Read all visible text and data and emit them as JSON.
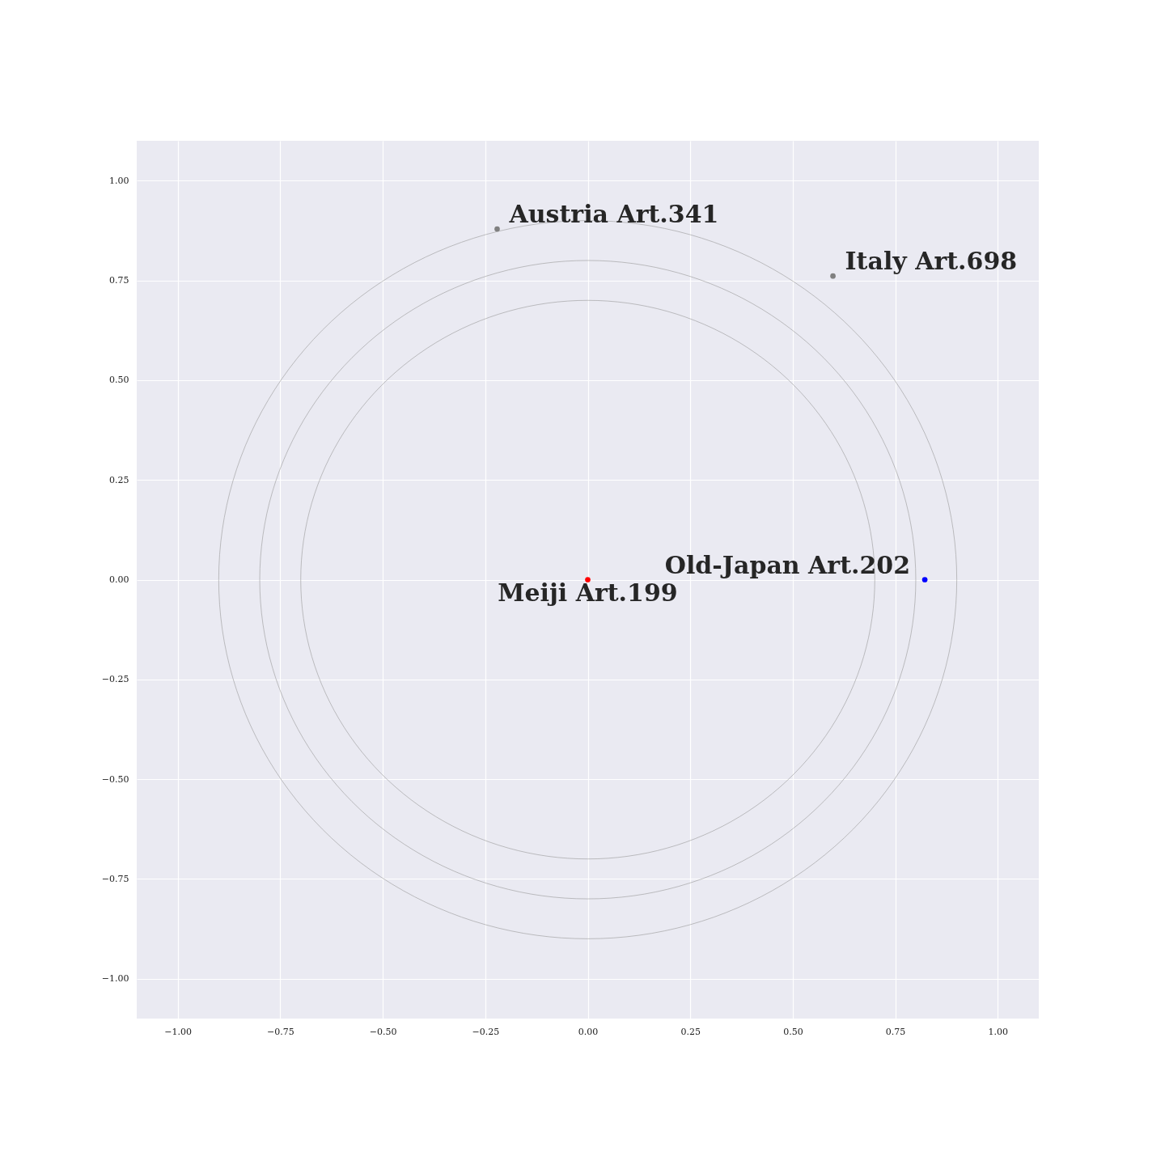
{
  "chart_data": {
    "type": "scatter",
    "series": [
      {
        "marker": "circle",
        "x": [
          0,
          0.822,
          -0.221,
          0.598
        ],
        "values": [
          0,
          0,
          0.879,
          0.761
        ],
        "colors": [
          "#ff0000",
          "#0000ff",
          "#808080",
          "#808080"
        ]
      }
    ],
    "annotations": [
      {
        "text": "Meiji Art.199",
        "x": 0,
        "y": 0
      },
      {
        "text": "Old-Japan Art.202",
        "x": 0.822,
        "y": 0
      },
      {
        "text": "Austria Art.341",
        "x": -0.221,
        "y": 0.879
      },
      {
        "text": "Italy Art.698",
        "x": 0.598,
        "y": 0.761
      }
    ],
    "xlim": [
      -1.1,
      1.1
    ],
    "ylim": [
      -1.1,
      1.1
    ],
    "xticks": [
      {
        "value": -1,
        "label": "−1.00"
      },
      {
        "value": -0.75,
        "label": "−0.75"
      },
      {
        "value": -0.5,
        "label": "−0.50"
      },
      {
        "value": -0.25,
        "label": "−0.25"
      },
      {
        "value": 0,
        "label": "0.00"
      },
      {
        "value": 0.25,
        "label": "0.25"
      },
      {
        "value": 0.5,
        "label": "0.50"
      },
      {
        "value": 0.75,
        "label": "0.75"
      },
      {
        "value": 1,
        "label": "1.00"
      }
    ],
    "yticks": [
      {
        "value": -1,
        "label": "−1.00"
      },
      {
        "value": -0.75,
        "label": "−0.75"
      },
      {
        "value": -0.5,
        "label": "−0.50"
      },
      {
        "value": -0.25,
        "label": "−0.25"
      },
      {
        "value": 0,
        "label": "0.00"
      },
      {
        "value": 0.25,
        "label": "0.25"
      },
      {
        "value": 0.5,
        "label": "0.50"
      },
      {
        "value": 0.75,
        "label": "0.75"
      },
      {
        "value": 1,
        "label": "1.00"
      }
    ],
    "grid": true
  }
}
